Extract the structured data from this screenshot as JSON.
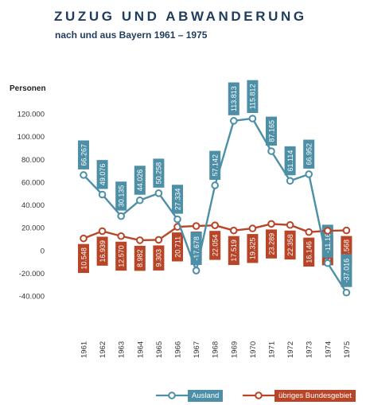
{
  "chart_data": {
    "type": "line",
    "title": "ZUZUG UND ABWANDERUNG",
    "subtitle": "nach und aus Bayern 1961 – 1975",
    "ylabel": "Personen",
    "xlabel": "",
    "ylim": [
      -40000,
      120000
    ],
    "yticks": [
      120000,
      100000,
      80000,
      60000,
      40000,
      20000,
      0,
      -20000,
      -40000
    ],
    "ytick_labels": [
      "120.000",
      "100.000",
      "80.000",
      "60.000",
      "40.000",
      "20.000",
      "0",
      "-20.000",
      "-40.000"
    ],
    "grid": false,
    "legend_position": "bottom",
    "categories": [
      "1961",
      "1962",
      "1963",
      "1964",
      "1965",
      "1966",
      "1967",
      "1968",
      "1969",
      "1970",
      "1971",
      "1972",
      "1973",
      "1974",
      "1975"
    ],
    "series": [
      {
        "name": "Ausland",
        "color": "#4d8fa6",
        "values": [
          66267,
          49076,
          30135,
          44026,
          50258,
          27334,
          -17678,
          57142,
          113813,
          115812,
          87165,
          61114,
          66952,
          -11161,
          -37016
        ],
        "labels": [
          "66.267",
          "49.076",
          "30.135",
          "44.026",
          "50.258",
          "27.334",
          "-17.678",
          "57.142",
          "113.813",
          "115.812",
          "87.165",
          "61.114",
          "66.952",
          "-11.161",
          "-37.016"
        ]
      },
      {
        "name": "übriges Bundesgebiet",
        "color": "#b84527",
        "values": [
          10548,
          16939,
          12570,
          8982,
          9303,
          20711,
          21436,
          22054,
          17519,
          19325,
          23289,
          22358,
          16146,
          17265,
          17568
        ],
        "labels": [
          "10.548",
          "16.939",
          "12.570",
          "8.982",
          "9.303",
          "20.711",
          "21.436",
          "22.054",
          "17.519",
          "19.325",
          "23.289",
          "22.358",
          "16.146",
          "17.265",
          "17.568"
        ]
      }
    ]
  }
}
